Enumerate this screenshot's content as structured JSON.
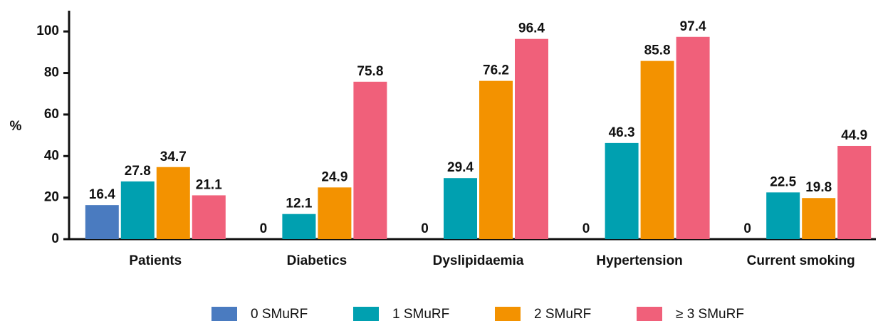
{
  "chart_data": {
    "type": "bar",
    "ylabel": "%",
    "categories": [
      "Patients",
      "Diabetics",
      "Dyslipidaemia",
      "Hypertension",
      "Current smoking"
    ],
    "series": [
      {
        "name": "0 SMuRF",
        "color": "#4a7bc0",
        "values": [
          16.4,
          0,
          0,
          0,
          0
        ]
      },
      {
        "name": "1 SMuRF",
        "color": "#00a0b0",
        "values": [
          27.8,
          12.1,
          29.4,
          46.3,
          22.5
        ]
      },
      {
        "name": "2 SMuRF",
        "color": "#f39200",
        "values": [
          34.7,
          24.9,
          76.2,
          85.8,
          19.8
        ]
      },
      {
        "name": "≥ 3 SMuRF",
        "color": "#f0607a",
        "values": [
          21.1,
          75.8,
          96.4,
          97.4,
          44.9
        ]
      }
    ],
    "ylim": [
      0,
      110
    ],
    "yticks": [
      0,
      20,
      40,
      60,
      80,
      100
    ],
    "grid": false,
    "legend": "bottom"
  }
}
